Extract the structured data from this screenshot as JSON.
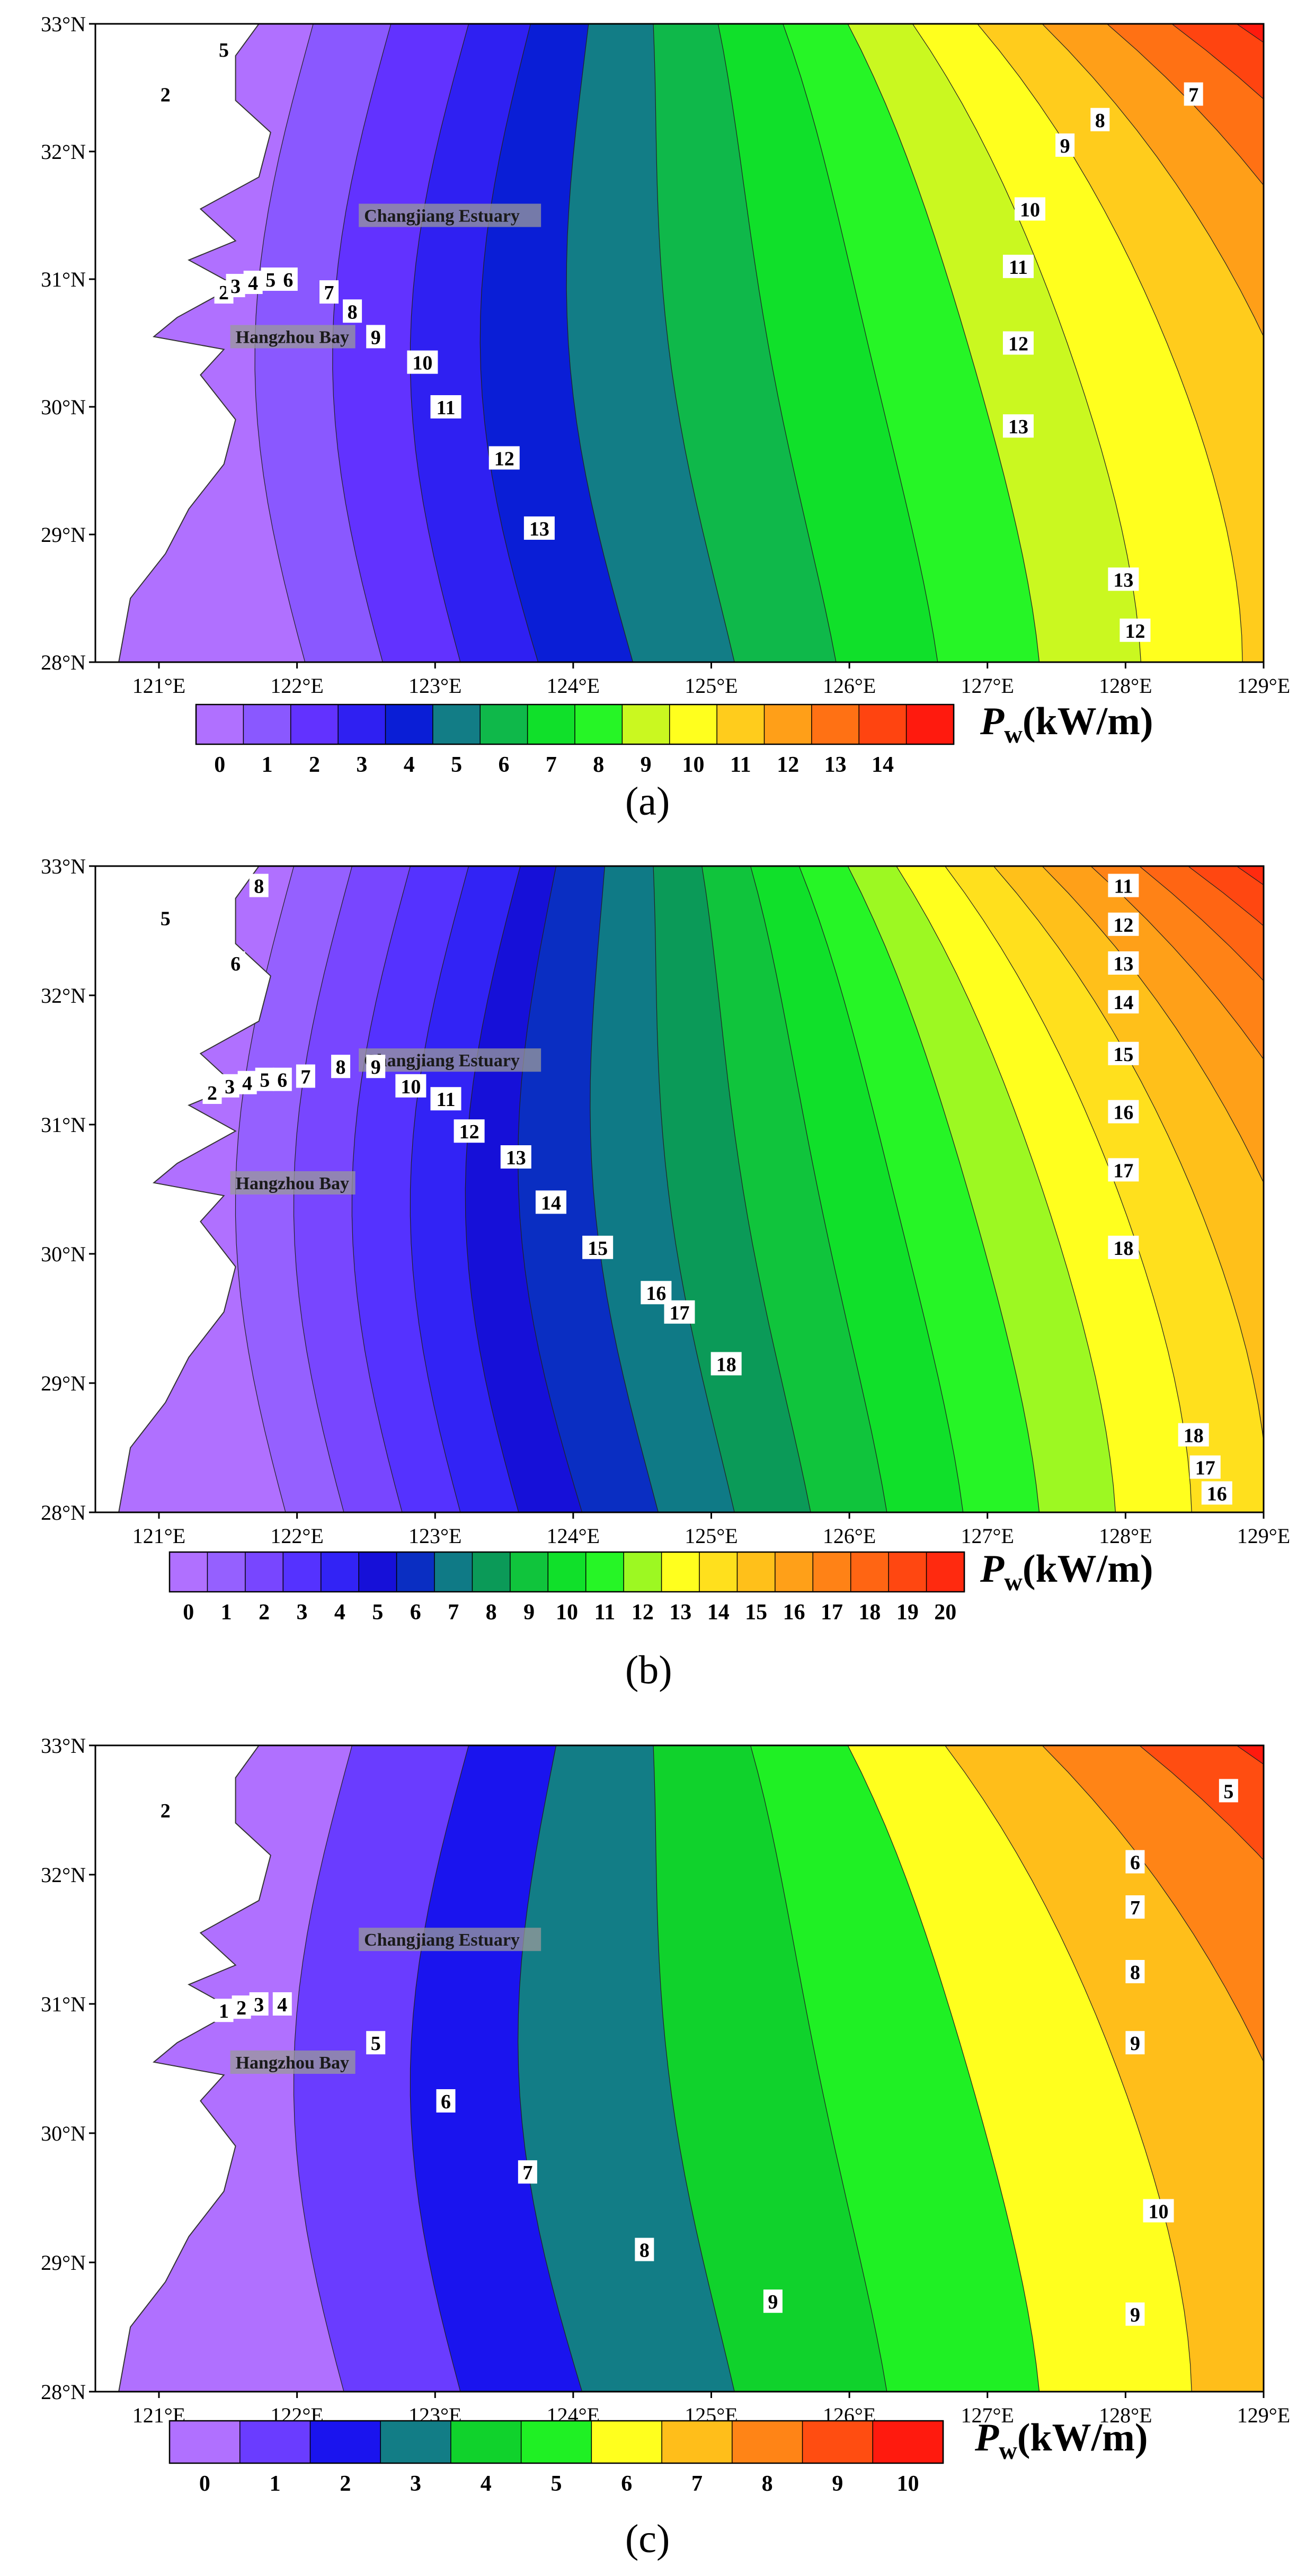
{
  "figure": {
    "panels": [
      {
        "id": "a",
        "label": "(a)",
        "map": {
          "lat_ticks": [
            "33°N",
            "32°N",
            "31°N",
            "30°N",
            "29°N",
            "28°N"
          ],
          "lon_ticks": [
            "121°E",
            "122°E",
            "123°E",
            "124°E",
            "125°E",
            "126°E",
            "127°E",
            "128°E",
            "129°E"
          ],
          "place_labels": [
            "Changjiang Estuary",
            "Hangzhou Bay"
          ],
          "contour_labels": [
            "2",
            "3",
            "4",
            "5",
            "6",
            "7",
            "8",
            "9",
            "10",
            "11",
            "12",
            "13",
            "13",
            "12",
            "2",
            "5",
            "8",
            "9",
            "10",
            "11",
            "12",
            "13",
            "7"
          ]
        },
        "colorbar": {
          "variable": "P",
          "subscript": "w",
          "unit": "(kW/m)",
          "tick_labels": [
            "0",
            "1",
            "2",
            "3",
            "4",
            "5",
            "6",
            "7",
            "8",
            "9",
            "10",
            "11",
            "12",
            "13",
            "14"
          ],
          "colors": [
            "#b070ff",
            "#8a58ff",
            "#6232ff",
            "#2f20f2",
            "#0a1ed6",
            "#127d86",
            "#0fb84a",
            "#10e02a",
            "#26f526",
            "#caf820",
            "#ffff1e",
            "#ffcc1c",
            "#ff9f18",
            "#ff7114",
            "#ff4410",
            "#ff1a0e"
          ]
        }
      },
      {
        "id": "b",
        "label": "(b)",
        "map": {
          "lat_ticks": [
            "33°N",
            "32°N",
            "31°N",
            "30°N",
            "29°N",
            "28°N"
          ],
          "lon_ticks": [
            "121°E",
            "122°E",
            "123°E",
            "124°E",
            "125°E",
            "126°E",
            "127°E",
            "128°E",
            "129°E"
          ],
          "place_labels": [
            "Changjiang Estuary",
            "Hangzhou Bay"
          ],
          "contour_labels": [
            "2",
            "3",
            "4",
            "5",
            "6",
            "7",
            "8",
            "9",
            "10",
            "11",
            "12",
            "13",
            "14",
            "15",
            "16",
            "17",
            "18",
            "5",
            "6",
            "8",
            "11",
            "12",
            "13",
            "14",
            "15",
            "16",
            "17",
            "18",
            "18",
            "17",
            "16"
          ]
        },
        "colorbar": {
          "variable": "P",
          "subscript": "w",
          "unit": "(kW/m)",
          "tick_labels": [
            "0",
            "1",
            "2",
            "3",
            "4",
            "5",
            "6",
            "7",
            "8",
            "9",
            "10",
            "11",
            "12",
            "13",
            "14",
            "15",
            "16",
            "17",
            "18",
            "19",
            "20"
          ],
          "colors": [
            "#b070ff",
            "#9560ff",
            "#7846ff",
            "#5532ff",
            "#3223f5",
            "#1610d8",
            "#0a2ec2",
            "#0f7a86",
            "#0b9a58",
            "#10c43c",
            "#10e02a",
            "#26f526",
            "#9df822",
            "#ffff1e",
            "#ffe01d",
            "#ffc01a",
            "#ffa018",
            "#ff8216",
            "#ff6513",
            "#ff4711",
            "#ff2a0f"
          ]
        }
      },
      {
        "id": "c",
        "label": "(c)",
        "map": {
          "lat_ticks": [
            "33°N",
            "32°N",
            "31°N",
            "30°N",
            "29°N",
            "28°N"
          ],
          "lon_ticks": [
            "121°E",
            "122°E",
            "123°E",
            "124°E",
            "125°E",
            "126°E",
            "127°E",
            "128°E",
            "129°E"
          ],
          "place_labels": [
            "Changjiang Estuary",
            "Hangzhou Bay"
          ],
          "contour_labels": [
            "1",
            "2",
            "3",
            "4",
            "5",
            "6",
            "7",
            "8",
            "9",
            "2",
            "6",
            "7",
            "8",
            "9",
            "10",
            "9",
            "5"
          ]
        },
        "colorbar": {
          "variable": "P",
          "subscript": "w",
          "unit": "(kW/m)",
          "tick_labels": [
            "0",
            "1",
            "2",
            "3",
            "4",
            "5",
            "6",
            "7",
            "8",
            "9",
            "10"
          ],
          "colors": [
            "#b070ff",
            "#6a3cff",
            "#1a14ee",
            "#127d86",
            "#10d22c",
            "#1ff024",
            "#ffff1e",
            "#ffbe1a",
            "#ff8416",
            "#ff4d11",
            "#ff1a0e"
          ]
        }
      }
    ]
  }
}
